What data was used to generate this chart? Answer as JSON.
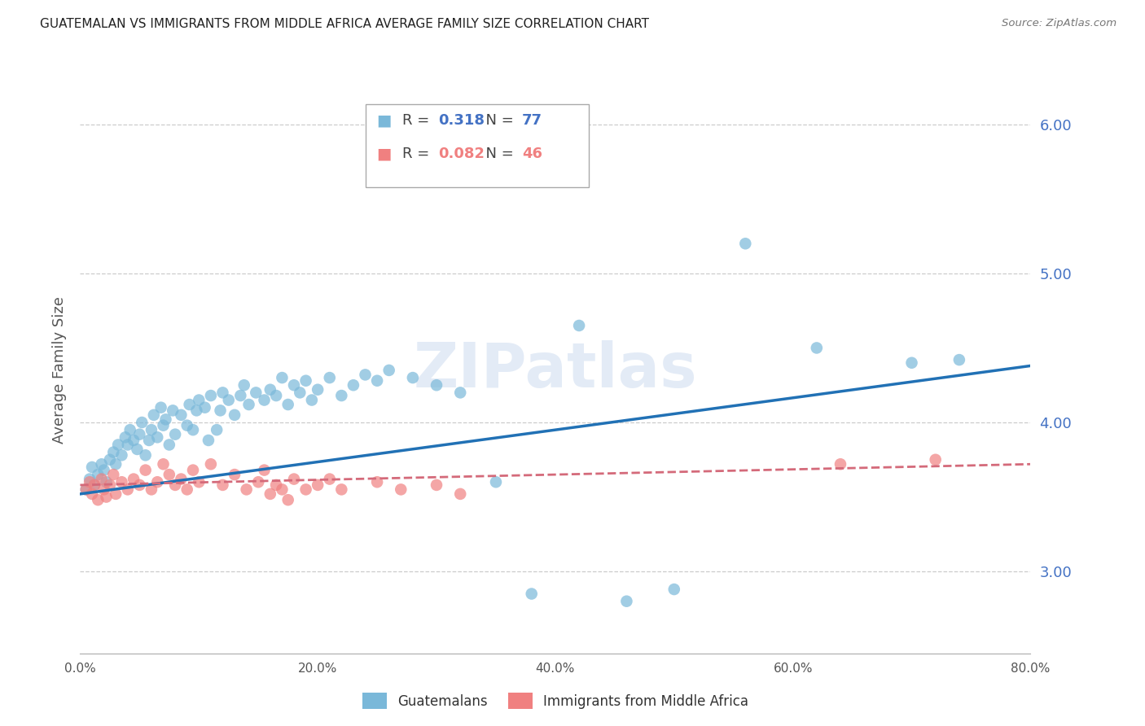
{
  "title": "GUATEMALAN VS IMMIGRANTS FROM MIDDLE AFRICA AVERAGE FAMILY SIZE CORRELATION CHART",
  "source": "Source: ZipAtlas.com",
  "ylabel": "Average Family Size",
  "xmin": 0.0,
  "xmax": 0.8,
  "ymin": 2.45,
  "ymax": 6.25,
  "yticks": [
    3.0,
    4.0,
    5.0,
    6.0
  ],
  "xticks": [
    0.0,
    0.1,
    0.2,
    0.3,
    0.4,
    0.5,
    0.6,
    0.7,
    0.8
  ],
  "series1_color": "#7ab8d9",
  "series2_color": "#f08080",
  "trendline1_color": "#2171b5",
  "trendline2_color": "#d46a7a",
  "R1": 0.318,
  "N1": 77,
  "R2": 0.082,
  "N2": 46,
  "legend_label1": "Guatemalans",
  "legend_label2": "Immigrants from Middle Africa",
  "title_color": "#333333",
  "axis_color": "#4472c4",
  "watermark": "ZIPatlas",
  "scatter1_x": [
    0.005,
    0.008,
    0.01,
    0.012,
    0.015,
    0.018,
    0.02,
    0.022,
    0.025,
    0.028,
    0.03,
    0.032,
    0.035,
    0.038,
    0.04,
    0.042,
    0.045,
    0.048,
    0.05,
    0.052,
    0.055,
    0.058,
    0.06,
    0.062,
    0.065,
    0.068,
    0.07,
    0.072,
    0.075,
    0.078,
    0.08,
    0.085,
    0.09,
    0.092,
    0.095,
    0.098,
    0.1,
    0.105,
    0.108,
    0.11,
    0.115,
    0.118,
    0.12,
    0.125,
    0.13,
    0.135,
    0.138,
    0.142,
    0.148,
    0.155,
    0.16,
    0.165,
    0.17,
    0.175,
    0.18,
    0.185,
    0.19,
    0.195,
    0.2,
    0.21,
    0.22,
    0.23,
    0.24,
    0.25,
    0.26,
    0.28,
    0.3,
    0.32,
    0.35,
    0.38,
    0.42,
    0.46,
    0.5,
    0.56,
    0.62,
    0.7,
    0.74
  ],
  "scatter1_y": [
    3.55,
    3.62,
    3.7,
    3.58,
    3.65,
    3.72,
    3.68,
    3.6,
    3.75,
    3.8,
    3.72,
    3.85,
    3.78,
    3.9,
    3.85,
    3.95,
    3.88,
    3.82,
    3.92,
    4.0,
    3.78,
    3.88,
    3.95,
    4.05,
    3.9,
    4.1,
    3.98,
    4.02,
    3.85,
    4.08,
    3.92,
    4.05,
    3.98,
    4.12,
    3.95,
    4.08,
    4.15,
    4.1,
    3.88,
    4.18,
    3.95,
    4.08,
    4.2,
    4.15,
    4.05,
    4.18,
    4.25,
    4.12,
    4.2,
    4.15,
    4.22,
    4.18,
    4.3,
    4.12,
    4.25,
    4.2,
    4.28,
    4.15,
    4.22,
    4.3,
    4.18,
    4.25,
    4.32,
    4.28,
    4.35,
    4.3,
    4.25,
    4.2,
    3.6,
    2.85,
    4.65,
    2.8,
    2.88,
    5.2,
    4.5,
    4.4,
    4.42
  ],
  "scatter2_x": [
    0.005,
    0.008,
    0.01,
    0.012,
    0.015,
    0.018,
    0.02,
    0.022,
    0.025,
    0.028,
    0.03,
    0.035,
    0.04,
    0.045,
    0.05,
    0.055,
    0.06,
    0.065,
    0.07,
    0.075,
    0.08,
    0.085,
    0.09,
    0.095,
    0.1,
    0.11,
    0.12,
    0.13,
    0.14,
    0.15,
    0.155,
    0.16,
    0.165,
    0.17,
    0.175,
    0.18,
    0.19,
    0.2,
    0.21,
    0.22,
    0.25,
    0.27,
    0.3,
    0.32,
    0.64,
    0.72
  ],
  "scatter2_y": [
    3.55,
    3.6,
    3.52,
    3.58,
    3.48,
    3.62,
    3.55,
    3.5,
    3.58,
    3.65,
    3.52,
    3.6,
    3.55,
    3.62,
    3.58,
    3.68,
    3.55,
    3.6,
    3.72,
    3.65,
    3.58,
    3.62,
    3.55,
    3.68,
    3.6,
    3.72,
    3.58,
    3.65,
    3.55,
    3.6,
    3.68,
    3.52,
    3.58,
    3.55,
    3.48,
    3.62,
    3.55,
    3.58,
    3.62,
    3.55,
    3.6,
    3.55,
    3.58,
    3.52,
    3.72,
    3.75
  ],
  "trendline1_x": [
    0.0,
    0.8
  ],
  "trendline1_y": [
    3.52,
    4.38
  ],
  "trendline2_x": [
    0.0,
    0.8
  ],
  "trendline2_y": [
    3.58,
    3.72
  ]
}
